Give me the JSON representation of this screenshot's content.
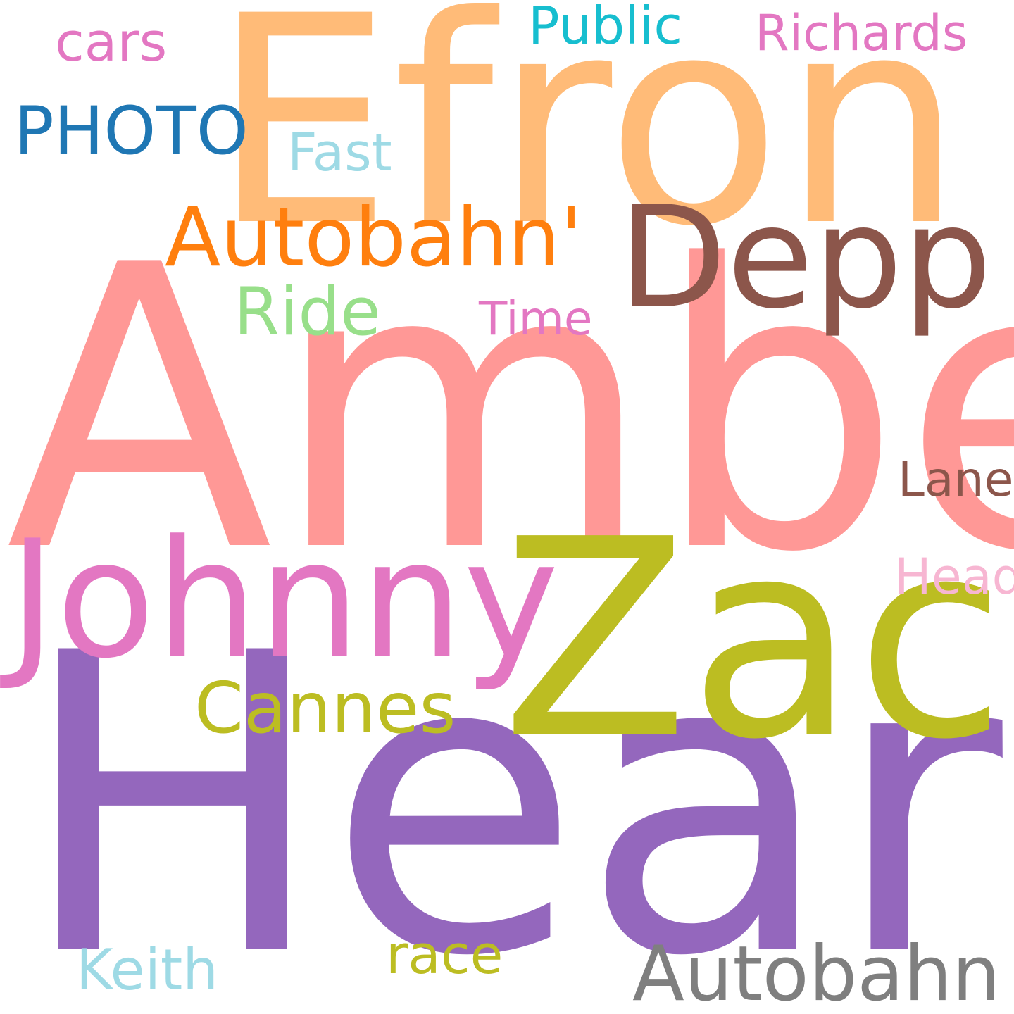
{
  "words": [
    {
      "id": "efron",
      "text": "Efron",
      "color": "#ffbb78"
    },
    {
      "id": "amber",
      "text": "Amber",
      "color": "#ff9896"
    },
    {
      "id": "heard",
      "text": "Heard",
      "color": "#9467bd"
    },
    {
      "id": "zac",
      "text": "Zac",
      "color": "#bcbd22"
    },
    {
      "id": "johnny",
      "text": "Johnny",
      "color": "#e377c2"
    },
    {
      "id": "depp",
      "text": "Depp",
      "color": "#8c564b"
    },
    {
      "id": "autobahn-q",
      "text": "Autobahn'",
      "color": "#ff7f0e"
    },
    {
      "id": "autobahn",
      "text": "Autobahn",
      "color": "#7f7f7f"
    },
    {
      "id": "cannes",
      "text": "Cannes",
      "color": "#bcbd22"
    },
    {
      "id": "photo",
      "text": "PHOTO",
      "color": "#1f77b4"
    },
    {
      "id": "ride",
      "text": "Ride",
      "color": "#98df8a"
    },
    {
      "id": "richards",
      "text": "Richards",
      "color": "#e377c2"
    },
    {
      "id": "public",
      "text": "Public",
      "color": "#17becf"
    },
    {
      "id": "cars",
      "text": "cars",
      "color": "#e377c2"
    },
    {
      "id": "fast",
      "text": "Fast",
      "color": "#9edae5"
    },
    {
      "id": "time",
      "text": "Time",
      "color": "#e377c2"
    },
    {
      "id": "lane",
      "text": "Lane",
      "color": "#8c564b"
    },
    {
      "id": "head",
      "text": "Head",
      "color": "#f7b6d2"
    },
    {
      "id": "keith",
      "text": "Keith",
      "color": "#9edae5"
    },
    {
      "id": "race",
      "text": "race",
      "color": "#bcbd22"
    }
  ]
}
